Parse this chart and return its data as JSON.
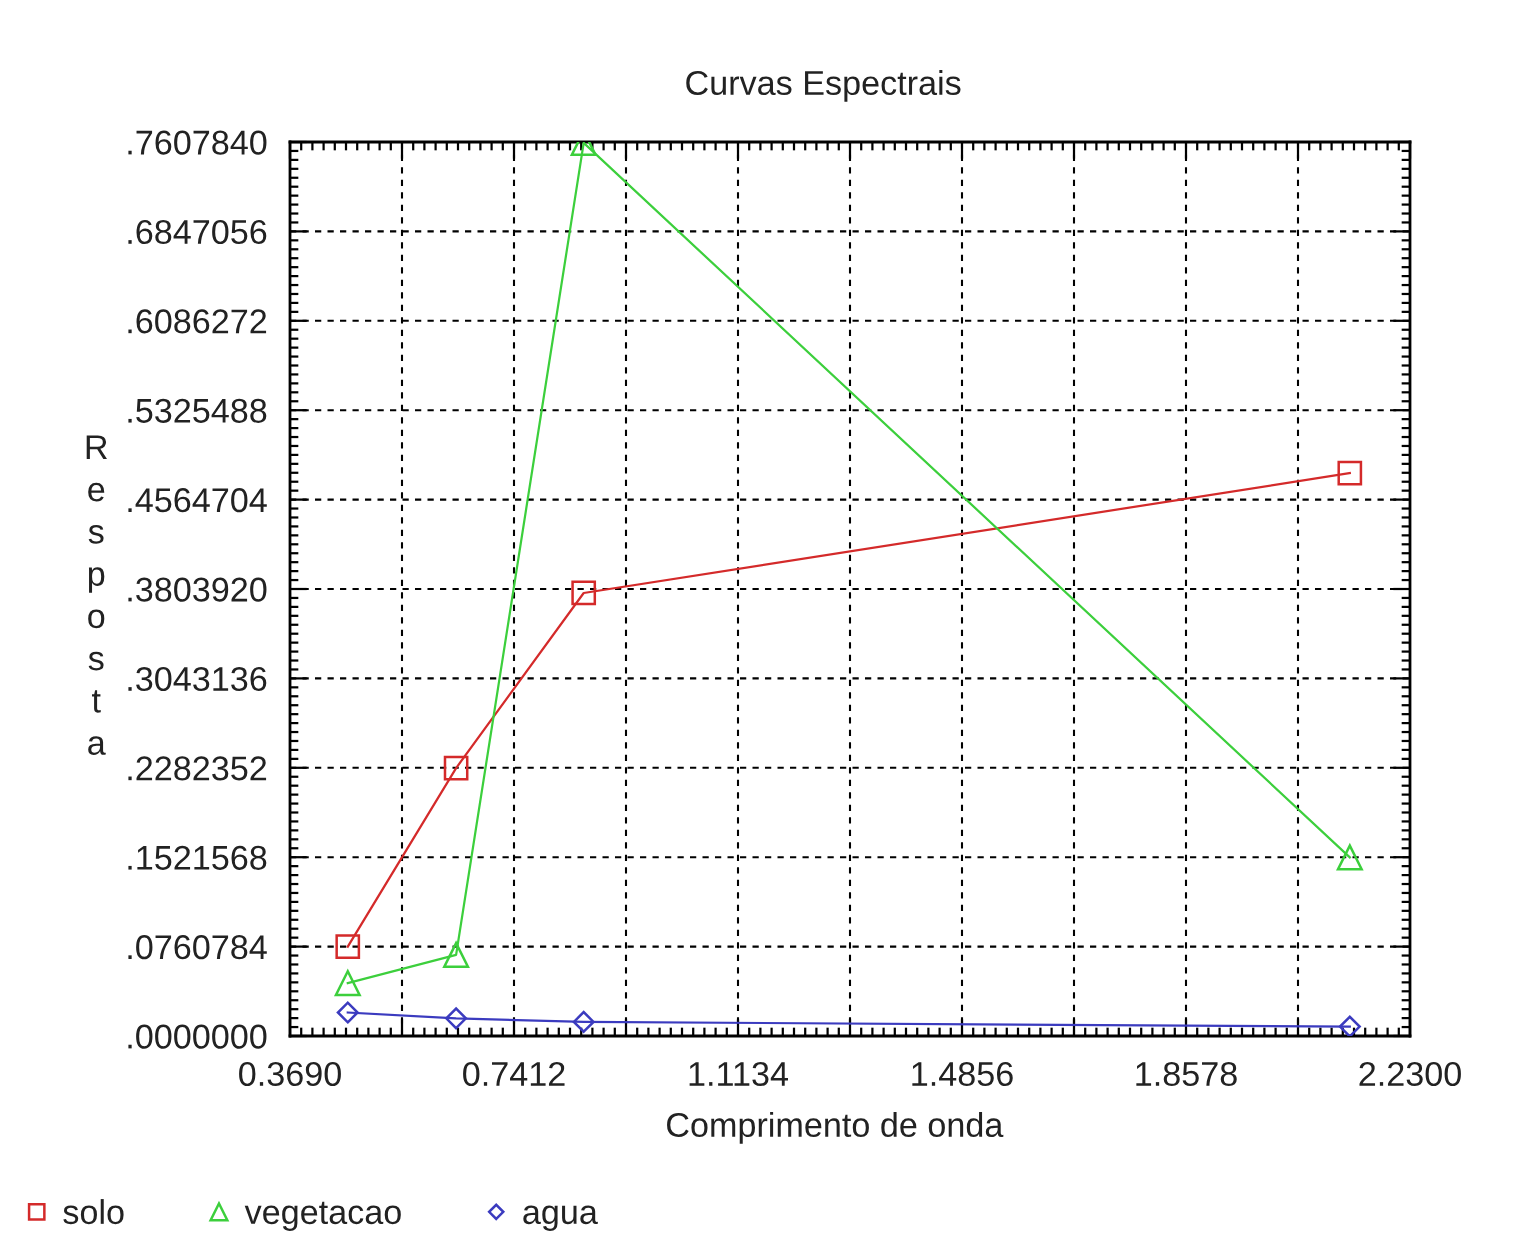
{
  "chart_data": {
    "type": "line",
    "title": "Curvas Espectrais",
    "xlabel": "Comprimento de onda",
    "ylabel": "Resposta",
    "x": [
      0.465,
      0.645,
      0.857,
      2.13
    ],
    "series": [
      {
        "name": "solo",
        "color": "#d42a2a",
        "marker": "square",
        "values": [
          0.076,
          0.228,
          0.377,
          0.479
        ]
      },
      {
        "name": "vegetacao",
        "color": "#3ccf3c",
        "marker": "triangle",
        "values": [
          0.045,
          0.069,
          0.76,
          0.152
        ]
      },
      {
        "name": "agua",
        "color": "#3b3bbf",
        "marker": "diamond",
        "values": [
          0.02,
          0.015,
          0.012,
          0.008
        ]
      }
    ],
    "xlim": [
      0.369,
      2.23
    ],
    "xticks": [
      {
        "value": 0.369,
        "label": "0.3690"
      },
      {
        "value": 0.5551,
        "label": null
      },
      0.7412,
      {
        "value": 0.9273,
        "label": null
      },
      1.1134,
      {
        "value": 1.2995,
        "label": null
      },
      1.4856,
      {
        "value": 1.6717,
        "label": null
      },
      1.8578,
      {
        "value": 2.0439,
        "label": null
      },
      {
        "value": 2.23,
        "label": "2.2300"
      }
    ],
    "ylim": [
      0,
      0.760784
    ],
    "yticks": [
      {
        "value": 0,
        "label": ".0000000"
      },
      {
        "value": 0.0760784,
        "label": ".0760784"
      },
      {
        "value": 0.1521568,
        "label": ".1521568"
      },
      {
        "value": 0.2282352,
        "label": ".2282352"
      },
      {
        "value": 0.3043136,
        "label": ".3043136"
      },
      {
        "value": 0.380392,
        "label": ".3803920"
      },
      {
        "value": 0.4564704,
        "label": ".4564704"
      },
      {
        "value": 0.5325488,
        "label": ".5325488"
      },
      {
        "value": 0.6086272,
        "label": ".6086272"
      },
      {
        "value": 0.6847056,
        "label": ".6847056"
      },
      {
        "value": 0.760784,
        "label": ".7607840"
      }
    ],
    "grid": true,
    "legend": "bottom left",
    "line_style": "solid"
  }
}
